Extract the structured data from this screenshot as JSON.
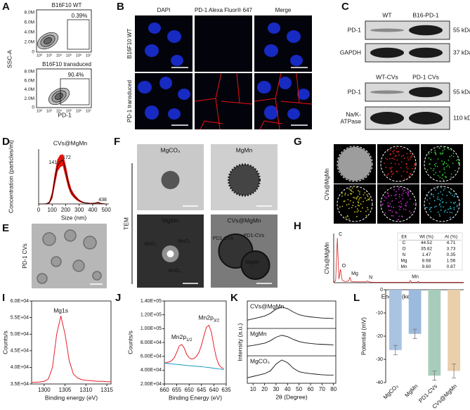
{
  "figure": {
    "panel_labels": [
      "A",
      "B",
      "C",
      "D",
      "E",
      "F",
      "G",
      "H",
      "I",
      "J",
      "K",
      "L"
    ]
  },
  "panel_a": {
    "ylabel": "SSC-A",
    "xlabel": "PD-1",
    "plots": [
      {
        "title": "B16F10 WT",
        "gate": "0.39%"
      },
      {
        "title": "B16F10 transduced",
        "gate": "90.4%"
      }
    ],
    "yticks": [
      "8.0M",
      "6.0M",
      "4.0M",
      "2.0M",
      "0"
    ],
    "xticks": [
      "10⁰",
      "10³",
      "10⁴",
      "10⁵",
      "10⁶",
      "10⁷"
    ]
  },
  "panel_b": {
    "columns": [
      "DAPI",
      "PD-1 Alexa Fluor® 647",
      "Merge"
    ],
    "rows": [
      "B16F10 WT",
      "PD-1 transduced"
    ]
  },
  "panel_c": {
    "blots": [
      {
        "lanes": [
          "WT",
          "B16-PD-1"
        ],
        "bands": [
          {
            "protein": [
              "PD-1"
            ],
            "size": "55 kDa"
          },
          {
            "protein": [
              "GAPDH"
            ],
            "size": "37 kDa"
          }
        ]
      },
      {
        "lanes": [
          "WT-CVs",
          "PD-1 CVs"
        ],
        "bands": [
          {
            "protein": [
              "PD-1"
            ],
            "size": "55 kDa"
          },
          {
            "protein": [
              "Na/K-",
              "ATPase"
            ],
            "size": "110 kDa"
          }
        ]
      }
    ]
  },
  "panel_e": {
    "ylabel": "PD-1 CVs"
  },
  "panel_f": {
    "side_label": "TEM",
    "images": [
      {
        "title": "MgCO₃",
        "notes": []
      },
      {
        "title": "MgMn",
        "notes": []
      },
      {
        "title": "MgMn",
        "notes": [
          "MnO₂",
          "MnO₂",
          "MnO₂"
        ]
      },
      {
        "title": "CVs@MgMn",
        "notes": [
          "PD1-CVs",
          "PD1-CVs",
          "MgMn"
        ]
      }
    ]
  },
  "panel_g": {
    "ylabel": "CVs@MgMn",
    "maps": [
      "BF",
      "C",
      "O",
      "Mg",
      "Mn",
      "N"
    ],
    "colors": [
      "#ffffff",
      "#e02424",
      "#35c435",
      "#c9c227",
      "#c72bc7",
      "#2bb7c7"
    ]
  },
  "panel_h": {
    "ylabel": "CVs@MgMn",
    "table": {
      "header": [
        "Elt",
        "Wt (%)",
        "At (%)"
      ],
      "rows": [
        [
          "C",
          "44.52",
          "4.71"
        ],
        [
          "O",
          "35.82",
          "3.73"
        ],
        [
          "N",
          "1.47",
          "0.35"
        ],
        [
          "Mg",
          "8.68",
          "1.56"
        ],
        [
          "Mn",
          "9.60",
          "0.87"
        ]
      ],
      "row_colors": [
        "#d62020",
        "#2fa82f",
        "#2550d0",
        "#b8a800",
        "#c020c0"
      ]
    }
  },
  "chart_data": [
    {
      "type": "line",
      "title": "CVs@MgMn",
      "xlabel": "Size (nm)",
      "ylabel": "Concentration (particles/ml)",
      "x": [
        0,
        20,
        40,
        60,
        80,
        100,
        120,
        140,
        160,
        180,
        200,
        220,
        240,
        260,
        280,
        300,
        320,
        340,
        360,
        380,
        400,
        420,
        440,
        460,
        480,
        500
      ],
      "xlim": [
        0,
        520
      ],
      "xticks": [
        0,
        100,
        200,
        300,
        400,
        500
      ],
      "ylim": [
        0,
        2
      ],
      "series": [
        {
          "color": "#000000",
          "values": [
            0,
            0,
            0,
            0.01,
            0.05,
            0.3,
            0.9,
            1.4,
            1.55,
            1.6,
            1.2,
            0.75,
            0.45,
            0.3,
            0.2,
            0.12,
            0.07,
            0.04,
            0.03,
            0.02,
            0.02,
            0.03,
            0.05,
            0.02,
            0.01,
            0
          ]
        }
      ],
      "band": {
        "color": "#e3120b",
        "upper": [
          0,
          0,
          0,
          0.02,
          0.08,
          0.42,
          1.08,
          1.62,
          1.78,
          1.8,
          1.4,
          0.9,
          0.55,
          0.37,
          0.25,
          0.15,
          0.09,
          0.05,
          0.04,
          0.03,
          0.03,
          0.04,
          0.07,
          0.03,
          0.01,
          0
        ],
        "lower": [
          0,
          0,
          0,
          0,
          0.03,
          0.2,
          0.72,
          1.2,
          1.35,
          1.4,
          1.0,
          0.6,
          0.36,
          0.24,
          0.15,
          0.09,
          0.05,
          0.03,
          0.02,
          0.01,
          0.01,
          0.02,
          0.03,
          0.01,
          0,
          0
        ]
      },
      "peaks": [
        141,
        172,
        438
      ],
      "peak_color": "#3b4fd8"
    },
    {
      "type": "line",
      "xlabel": "Energy (keV)",
      "x": [
        0,
        0.15,
        0.28,
        0.4,
        0.52,
        0.65,
        0.8,
        1.0,
        1.15,
        1.25,
        1.35,
        1.6,
        2.0,
        2.5,
        2.6,
        2.7,
        3.0,
        4.0,
        5.0,
        5.8,
        5.9,
        6.0,
        6.4,
        6.5,
        6.6,
        7.5,
        8.5,
        10
      ],
      "xlim": [
        0,
        10
      ],
      "ylim": [
        0,
        1.1
      ],
      "series": [
        {
          "color": "#d62020",
          "values": [
            0,
            0.05,
            1.0,
            0.08,
            0.3,
            0.06,
            0.03,
            0.03,
            0.04,
            0.12,
            0.03,
            0.02,
            0.02,
            0.02,
            0.04,
            0.02,
            0.01,
            0.01,
            0.01,
            0.01,
            0.05,
            0.01,
            0.01,
            0.03,
            0.01,
            0.01,
            0.01,
            0.01
          ]
        }
      ],
      "annotations": [
        {
          "text": "C",
          "x": 0.28
        },
        {
          "text": "O",
          "x": 0.52
        },
        {
          "text": "Mg",
          "x": 1.25
        },
        {
          "text": "N",
          "x": 2.6
        },
        {
          "text": "Mn",
          "x": 5.9
        }
      ]
    },
    {
      "type": "line",
      "xlabel": "Binding energy (eV)",
      "ylabel": "Counts/s",
      "x": [
        1297,
        1298,
        1299,
        1300,
        1301,
        1302,
        1303,
        1304,
        1305,
        1306,
        1307,
        1308,
        1309,
        1310,
        1311,
        1312,
        1313,
        1314,
        1315,
        1316
      ],
      "xlim": [
        1297,
        1316
      ],
      "xticks": [
        1300,
        1305,
        1310,
        1315
      ],
      "ylim": [
        35000,
        60000
      ],
      "yticks": [
        {
          "value": 35000,
          "label": "3.5E+04"
        },
        {
          "value": 40000,
          "label": "4.0E+04"
        },
        {
          "value": 45000,
          "label": "4.5E+04"
        },
        {
          "value": 50000,
          "label": "5.0E+04"
        },
        {
          "value": 55000,
          "label": "5.5E+04"
        },
        {
          "value": 60000,
          "label": "6.0E+04"
        }
      ],
      "series": [
        {
          "color": "#e8202a",
          "values": [
            35500,
            35500,
            35600,
            35800,
            36500,
            40000,
            50000,
            55500,
            50000,
            42000,
            38000,
            36800,
            36300,
            36100,
            36000,
            35900,
            35800,
            35800,
            35700,
            35700
          ]
        }
      ],
      "annotations": [
        {
          "text": "Mg1s",
          "x": 1304
        }
      ]
    },
    {
      "type": "line",
      "xlabel": "Binding Energy (eV)",
      "ylabel": "Counts/s",
      "x": [
        660,
        659,
        658,
        657,
        656,
        655,
        654,
        653,
        652,
        651,
        650,
        649,
        648,
        647,
        646,
        645,
        644,
        643,
        642,
        641,
        640,
        639,
        638,
        637,
        636
      ],
      "xlim": [
        660,
        635
      ],
      "xticks": [
        660,
        655,
        650,
        645,
        640,
        635
      ],
      "ylim": [
        20000,
        140000
      ],
      "yticks": [
        {
          "value": 20000,
          "label": "2.00E+04"
        },
        {
          "value": 40000,
          "label": "4.00E+04"
        },
        {
          "value": 60000,
          "label": "6.00E+04"
        },
        {
          "value": 80000,
          "label": "8.00E+04"
        },
        {
          "value": 100000,
          "label": "1.00E+05"
        },
        {
          "value": 120000,
          "label": "1.20E+05"
        },
        {
          "value": 140000,
          "label": "1.40E+05"
        }
      ],
      "series": [
        {
          "color": "#e8202a",
          "values": [
            50000,
            51000,
            52000,
            54000,
            58000,
            66000,
            75000,
            77000,
            72000,
            63000,
            58000,
            56000,
            57000,
            60000,
            66000,
            76000,
            90000,
            102000,
            105000,
            95000,
            75000,
            58000,
            48000,
            44000,
            42000
          ]
        },
        {
          "color": "#1a9ac0",
          "values": [
            50000,
            49700,
            49400,
            49000,
            48700,
            48400,
            48000,
            47600,
            47200,
            46800,
            46500,
            46200,
            45900,
            45600,
            45300,
            45000,
            44600,
            44200,
            43800,
            43300,
            42800,
            42300,
            41800,
            41400,
            41000
          ]
        }
      ],
      "annotations": [
        {
          "main": "Mn2p",
          "sub": "1/2",
          "x": 653
        },
        {
          "main": "Mn2p",
          "sub": "3/2",
          "x": 642
        }
      ]
    },
    {
      "type": "line",
      "xlabel": "2θ (Degree)",
      "ylabel": "Intensity (a.u.)",
      "x": [
        5,
        10,
        15,
        20,
        25,
        30,
        35,
        40,
        45,
        50,
        55,
        60,
        65,
        70,
        75,
        80
      ],
      "xlim": [
        5,
        82
      ],
      "xticks": [
        10,
        20,
        30,
        40,
        50,
        60,
        70,
        80
      ],
      "ylim": [
        0,
        3
      ],
      "series": [
        {
          "name": "CVs@MgMn",
          "color": "#111111",
          "values": [
            2.3,
            2.35,
            2.4,
            2.45,
            2.55,
            2.7,
            2.78,
            2.72,
            2.6,
            2.5,
            2.45,
            2.42,
            2.4,
            2.38,
            2.37,
            2.36
          ]
        },
        {
          "name": "MgMn",
          "color": "#111111",
          "values": [
            1.35,
            1.38,
            1.42,
            1.46,
            1.55,
            1.68,
            1.75,
            1.7,
            1.6,
            1.52,
            1.48,
            1.45,
            1.43,
            1.42,
            1.41,
            1.4
          ]
        },
        {
          "name": "MgCO₃",
          "color": "#111111",
          "values": [
            0.2,
            0.25,
            0.3,
            0.35,
            0.45,
            0.7,
            0.85,
            0.75,
            0.55,
            0.42,
            0.38,
            0.35,
            0.33,
            0.31,
            0.3,
            0.3
          ]
        }
      ]
    },
    {
      "type": "bar",
      "ylabel": "Potential (mV)",
      "categories": [
        "MgCO₃",
        "MgMn",
        "PD1-CVs",
        "CVs@MgMn"
      ],
      "values": [
        -26,
        -19,
        -37,
        -35
      ],
      "errors": [
        2,
        2,
        2,
        3
      ],
      "colors": [
        "#a9c3e3",
        "#9cb9de",
        "#a8ccbb",
        "#e9cfaa"
      ],
      "ylim": [
        -40,
        0
      ],
      "yticks": [
        0,
        -10,
        -20,
        -30,
        -40
      ]
    }
  ]
}
